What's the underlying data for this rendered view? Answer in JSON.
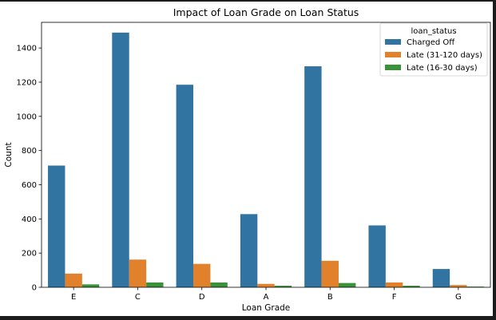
{
  "chart_data": {
    "type": "bar",
    "title": "Impact of Loan Grade on Loan Status",
    "xlabel": "Loan Grade",
    "ylabel": "Count",
    "categories": [
      "E",
      "C",
      "D",
      "A",
      "B",
      "F",
      "G"
    ],
    "ylim": [
      0,
      1550
    ],
    "yticks": [
      0,
      200,
      400,
      600,
      800,
      1000,
      1200,
      1400
    ],
    "grid": false,
    "legend": {
      "title": "loan_status",
      "placement": "top-right"
    },
    "series": [
      {
        "name": "Charged Off",
        "color": "#3274a1",
        "values": [
          712,
          1490,
          1185,
          428,
          1293,
          362,
          107
        ]
      },
      {
        "name": "Late (31-120 days)",
        "color": "#e1812c",
        "values": [
          80,
          162,
          137,
          20,
          155,
          28,
          13
        ]
      },
      {
        "name": "Late (16-30 days)",
        "color": "#3a923a",
        "values": [
          17,
          28,
          28,
          9,
          25,
          9,
          4
        ]
      }
    ]
  }
}
